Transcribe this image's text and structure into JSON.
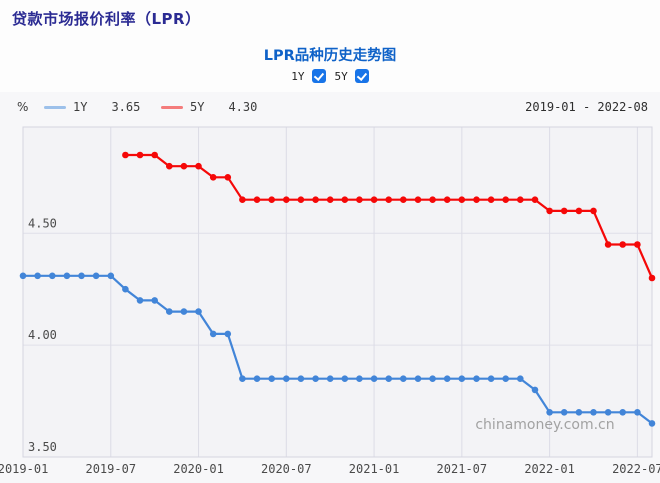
{
  "page": {
    "header_title": "贷款市场报价利率（LPR）",
    "chart_title": "LPR品种历史走势图"
  },
  "controls": {
    "toggles": [
      {
        "label": "1Y",
        "checked": true
      },
      {
        "label": "5Y",
        "checked": true
      }
    ]
  },
  "legend": {
    "unit": "%",
    "items": [
      {
        "label": "1Y",
        "value": "3.65",
        "color": "#9cc0ea"
      },
      {
        "label": "5Y",
        "value": "4.30",
        "color": "#f47c7c"
      }
    ],
    "date_range": "2019-01 - 2022-08"
  },
  "watermark": "chinamoney.com.cn",
  "chart_data": {
    "type": "line",
    "title": "LPR品种历史走势图",
    "ylabel": "%",
    "ylim": [
      3.5,
      4.975
    ],
    "yticks": [
      3.5,
      4.0,
      4.5
    ],
    "ytick_labels": [
      "3.50",
      "4.00",
      "4.50"
    ],
    "grid": true,
    "legend_position": "top-left",
    "x": [
      "2019-01",
      "2019-02",
      "2019-03",
      "2019-04",
      "2019-05",
      "2019-06",
      "2019-07",
      "2019-08",
      "2019-09",
      "2019-10",
      "2019-11",
      "2019-12",
      "2020-01",
      "2020-02",
      "2020-03",
      "2020-04",
      "2020-05",
      "2020-06",
      "2020-07",
      "2020-08",
      "2020-09",
      "2020-10",
      "2020-11",
      "2020-12",
      "2021-01",
      "2021-02",
      "2021-03",
      "2021-04",
      "2021-05",
      "2021-06",
      "2021-07",
      "2021-08",
      "2021-09",
      "2021-10",
      "2021-11",
      "2021-12",
      "2022-01",
      "2022-02",
      "2022-03",
      "2022-04",
      "2022-05",
      "2022-06",
      "2022-07",
      "2022-08"
    ],
    "xtick_indices": [
      0,
      6,
      12,
      18,
      24,
      30,
      36,
      42
    ],
    "xtick_labels": [
      "2019-01",
      "2019-07",
      "2020-01",
      "2020-07",
      "2021-01",
      "2021-07",
      "2022-01",
      "2022-07"
    ],
    "series": [
      {
        "name": "1Y",
        "color": "#4285d8",
        "values": [
          4.31,
          4.31,
          4.31,
          4.31,
          4.31,
          4.31,
          4.31,
          4.25,
          4.2,
          4.2,
          4.15,
          4.15,
          4.15,
          4.05,
          4.05,
          3.85,
          3.85,
          3.85,
          3.85,
          3.85,
          3.85,
          3.85,
          3.85,
          3.85,
          3.85,
          3.85,
          3.85,
          3.85,
          3.85,
          3.85,
          3.85,
          3.85,
          3.85,
          3.85,
          3.85,
          3.8,
          3.7,
          3.7,
          3.7,
          3.7,
          3.7,
          3.7,
          3.7,
          3.65
        ]
      },
      {
        "name": "5Y",
        "color": "#f50808",
        "values": [
          null,
          null,
          null,
          null,
          null,
          null,
          null,
          4.85,
          4.85,
          4.85,
          4.8,
          4.8,
          4.8,
          4.75,
          4.75,
          4.65,
          4.65,
          4.65,
          4.65,
          4.65,
          4.65,
          4.65,
          4.65,
          4.65,
          4.65,
          4.65,
          4.65,
          4.65,
          4.65,
          4.65,
          4.65,
          4.65,
          4.65,
          4.65,
          4.65,
          4.65,
          4.6,
          4.6,
          4.6,
          4.6,
          4.45,
          4.45,
          4.45,
          4.3
        ]
      }
    ]
  }
}
